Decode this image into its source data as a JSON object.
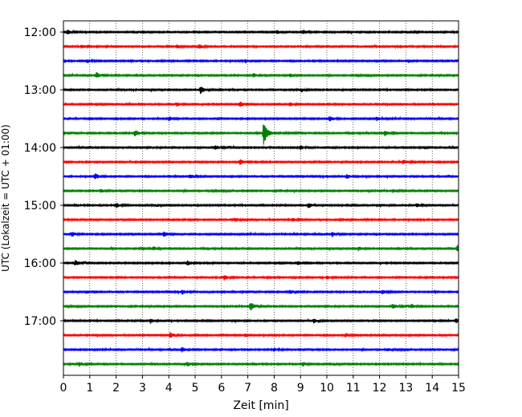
{
  "chart_data": {
    "type": "line",
    "title": "",
    "xlabel": "Zeit  [min]",
    "ylabel": "UTC (Lokalzeit = UTC + 01:00)",
    "xlim": [
      0,
      15
    ],
    "x_ticks": [
      "0",
      "1",
      "2",
      "3",
      "4",
      "5",
      "6",
      "7",
      "8",
      "9",
      "10",
      "11",
      "12",
      "13",
      "14",
      "15"
    ],
    "y_ticks": [
      "12:00",
      "13:00",
      "14:00",
      "15:00",
      "16:00",
      "17:00"
    ],
    "grid": "vertical dotted at each minute",
    "trace_colors": [
      "#000000",
      "#ff0000",
      "#0000ff",
      "#008000"
    ],
    "series": [
      {
        "start": "12:00",
        "color": "#000000",
        "events": [
          {
            "t": 0.15,
            "amp": 0.35
          },
          {
            "t": 8.1,
            "amp": 0.3
          },
          {
            "t": 9.1,
            "amp": 0.35
          }
        ]
      },
      {
        "start": "12:15",
        "color": "#ff0000",
        "events": [
          {
            "t": 0.7,
            "amp": 0.25
          },
          {
            "t": 4.3,
            "amp": 0.25
          },
          {
            "t": 5.15,
            "amp": 0.3
          }
        ]
      },
      {
        "start": "12:30",
        "color": "#0000ff",
        "events": [
          {
            "t": 0.9,
            "amp": 0.2
          },
          {
            "t": 6.9,
            "amp": 0.25
          },
          {
            "t": 13.1,
            "amp": 0.2
          }
        ]
      },
      {
        "start": "12:45",
        "color": "#008000",
        "events": [
          {
            "t": 1.25,
            "amp": 0.45
          },
          {
            "t": 7.2,
            "amp": 0.3
          },
          {
            "t": 8.6,
            "amp": 0.25
          }
        ]
      },
      {
        "start": "13:00",
        "color": "#000000",
        "events": [
          {
            "t": 5.2,
            "amp": 0.6
          },
          {
            "t": 9.0,
            "amp": 0.2
          }
        ]
      },
      {
        "start": "13:15",
        "color": "#ff0000",
        "events": [
          {
            "t": 4.3,
            "amp": 0.3
          },
          {
            "t": 6.7,
            "amp": 0.4
          },
          {
            "t": 8.6,
            "amp": 0.25
          }
        ]
      },
      {
        "start": "13:30",
        "color": "#0000ff",
        "events": [
          {
            "t": 4.0,
            "amp": 0.3
          },
          {
            "t": 10.1,
            "amp": 0.45
          },
          {
            "t": 11.9,
            "amp": 0.3
          }
        ]
      },
      {
        "start": "13:45",
        "color": "#008000",
        "events": [
          {
            "t": 2.7,
            "amp": 0.5
          },
          {
            "t": 7.6,
            "amp": 1.9
          },
          {
            "t": 12.2,
            "amp": 0.4
          }
        ]
      },
      {
        "start": "14:00",
        "color": "#000000",
        "events": [
          {
            "t": 5.75,
            "amp": 0.35
          },
          {
            "t": 9.0,
            "amp": 0.3
          }
        ]
      },
      {
        "start": "14:15",
        "color": "#ff0000",
        "events": [
          {
            "t": 6.7,
            "amp": 0.4
          },
          {
            "t": 12.9,
            "amp": 0.35
          }
        ]
      },
      {
        "start": "14:30",
        "color": "#0000ff",
        "events": [
          {
            "t": 1.2,
            "amp": 0.45
          },
          {
            "t": 4.8,
            "amp": 0.3
          },
          {
            "t": 10.75,
            "amp": 0.35
          }
        ]
      },
      {
        "start": "14:45",
        "color": "#008000",
        "events": [
          {
            "t": 1.4,
            "amp": 0.25
          },
          {
            "t": 12.5,
            "amp": 0.25
          }
        ]
      },
      {
        "start": "15:00",
        "color": "#000000",
        "events": [
          {
            "t": 2.0,
            "amp": 0.35
          },
          {
            "t": 9.3,
            "amp": 0.4
          },
          {
            "t": 13.4,
            "amp": 0.3
          }
        ]
      },
      {
        "start": "15:15",
        "color": "#ff0000",
        "events": [
          {
            "t": 6.5,
            "amp": 0.3
          },
          {
            "t": 8.7,
            "amp": 0.25
          }
        ]
      },
      {
        "start": "15:30",
        "color": "#0000ff",
        "events": [
          {
            "t": 0.3,
            "amp": 0.35
          },
          {
            "t": 3.8,
            "amp": 0.4
          },
          {
            "t": 10.2,
            "amp": 0.35
          }
        ]
      },
      {
        "start": "15:45",
        "color": "#008000",
        "events": [
          {
            "t": 3.4,
            "amp": 0.3
          },
          {
            "t": 11.2,
            "amp": 0.3
          },
          {
            "t": 14.95,
            "amp": 0.55
          }
        ]
      },
      {
        "start": "16:00",
        "color": "#000000",
        "events": [
          {
            "t": 0.45,
            "amp": 0.4
          },
          {
            "t": 4.7,
            "amp": 0.35
          },
          {
            "t": 8.9,
            "amp": 0.3
          }
        ]
      },
      {
        "start": "16:15",
        "color": "#ff0000",
        "events": [
          {
            "t": 6.1,
            "amp": 0.4
          },
          {
            "t": 10.0,
            "amp": 0.3
          }
        ]
      },
      {
        "start": "16:30",
        "color": "#0000ff",
        "events": [
          {
            "t": 4.5,
            "amp": 0.35
          },
          {
            "t": 8.6,
            "amp": 0.3
          },
          {
            "t": 12.1,
            "amp": 0.3
          }
        ]
      },
      {
        "start": "16:45",
        "color": "#008000",
        "events": [
          {
            "t": 7.1,
            "amp": 0.75
          },
          {
            "t": 12.5,
            "amp": 0.4
          },
          {
            "t": 13.2,
            "amp": 0.3
          }
        ]
      },
      {
        "start": "17:00",
        "color": "#000000",
        "events": [
          {
            "t": 3.3,
            "amp": 0.35
          },
          {
            "t": 9.5,
            "amp": 0.3
          },
          {
            "t": 14.9,
            "amp": 0.35
          }
        ]
      },
      {
        "start": "17:15",
        "color": "#ff0000",
        "events": [
          {
            "t": 4.05,
            "amp": 0.45
          },
          {
            "t": 6.9,
            "amp": 0.3
          },
          {
            "t": 10.7,
            "amp": 0.25
          }
        ]
      },
      {
        "start": "17:30",
        "color": "#0000ff",
        "events": [
          {
            "t": 4.5,
            "amp": 0.35
          },
          {
            "t": 8.0,
            "amp": 0.25
          },
          {
            "t": 12.3,
            "amp": 0.2
          }
        ]
      },
      {
        "start": "17:45",
        "color": "#008000",
        "events": [
          {
            "t": 0.6,
            "amp": 0.3
          },
          {
            "t": 4.7,
            "amp": 0.3
          },
          {
            "t": 9.1,
            "amp": 0.25
          }
        ]
      }
    ]
  }
}
